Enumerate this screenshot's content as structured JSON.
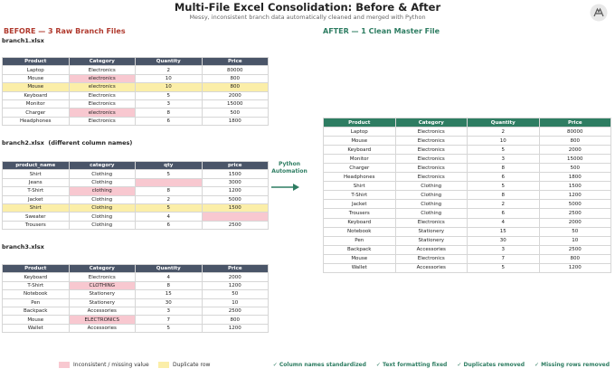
{
  "header": {
    "title": "Multi-File Excel Consolidation: Before & After",
    "subtitle": "Messy, inconsistent branch data automatically cleaned and merged with Python"
  },
  "before": {
    "heading": "BEFORE — 3 Raw Branch Files",
    "files": [
      {
        "label": "branch1.xlsx",
        "columns": [
          "Product",
          "Category",
          "Quantity",
          "Price"
        ],
        "rows": [
          [
            "Laptop",
            "Electronics",
            "2",
            "80000"
          ],
          [
            "Mouse",
            "electronics",
            "10",
            "800"
          ],
          [
            "Mouse",
            "electronics",
            "10",
            "800"
          ],
          [
            "Keyboard",
            "Electronics",
            "5",
            "2000"
          ],
          [
            "Monitor",
            "Electronics",
            "3",
            "15000"
          ],
          [
            "Charger",
            "electronics",
            "8",
            "500"
          ],
          [
            "Headphones",
            "Electronics",
            "6",
            "1800"
          ]
        ],
        "pink_cells": [
          [
            1,
            1
          ],
          [
            5,
            1
          ]
        ],
        "yellow_rows": [
          2
        ]
      },
      {
        "label": "branch2.xlsx  (different column names)",
        "columns": [
          "product_name",
          "category",
          "qty",
          "price"
        ],
        "rows": [
          [
            "Shirt",
            "Clothing",
            "5",
            "1500"
          ],
          [
            "Jeans",
            "Clothing",
            null,
            "3000"
          ],
          [
            "T-Shirt",
            "clothing",
            "8",
            "1200"
          ],
          [
            "Jacket",
            "Clothing",
            "2",
            "5000"
          ],
          [
            "Shirt",
            "Clothing",
            "5",
            "1500"
          ],
          [
            "Sweater",
            "Clothing",
            "4",
            null
          ],
          [
            "Trousers",
            "Clothing",
            "6",
            "2500"
          ]
        ],
        "pink_cells": [
          [
            1,
            2
          ],
          [
            2,
            1
          ],
          [
            5,
            3
          ]
        ],
        "yellow_rows": [
          4
        ]
      },
      {
        "label": "branch3.xlsx",
        "columns": [
          "Product",
          "Category",
          "Quantity",
          "Price"
        ],
        "rows": [
          [
            "Keyboard",
            "Electronics",
            "4",
            "2000"
          ],
          [
            "T-Shirt",
            "CLOTHING",
            "8",
            "1200"
          ],
          [
            "Notebook",
            "Stationery",
            "15",
            "50"
          ],
          [
            "Pen",
            "Stationery",
            "30",
            "10"
          ],
          [
            "Backpack",
            "Accessories",
            "3",
            "2500"
          ],
          [
            "Mouse",
            "ELECTRONICS",
            "7",
            "800"
          ],
          [
            "Wallet",
            "Accessories",
            "5",
            "1200"
          ]
        ],
        "pink_cells": [
          [
            1,
            1
          ],
          [
            5,
            1
          ]
        ],
        "yellow_rows": []
      }
    ]
  },
  "arrow_label": "Python\nAutomation",
  "after": {
    "heading": "AFTER — 1 Clean Master File",
    "columns": [
      "Product",
      "Category",
      "Quantity",
      "Price"
    ],
    "rows": [
      [
        "Laptop",
        "Electronics",
        "2",
        "80000"
      ],
      [
        "Mouse",
        "Electronics",
        "10",
        "800"
      ],
      [
        "Keyboard",
        "Electronics",
        "5",
        "2000"
      ],
      [
        "Monitor",
        "Electronics",
        "3",
        "15000"
      ],
      [
        "Charger",
        "Electronics",
        "8",
        "500"
      ],
      [
        "Headphones",
        "Electronics",
        "6",
        "1800"
      ],
      [
        "Shirt",
        "Clothing",
        "5",
        "1500"
      ],
      [
        "T-Shirt",
        "Clothing",
        "8",
        "1200"
      ],
      [
        "Jacket",
        "Clothing",
        "2",
        "5000"
      ],
      [
        "Trousers",
        "Clothing",
        "6",
        "2500"
      ],
      [
        "Keyboard",
        "Electronics",
        "4",
        "2000"
      ],
      [
        "Notebook",
        "Stationery",
        "15",
        "50"
      ],
      [
        "Pen",
        "Stationery",
        "30",
        "10"
      ],
      [
        "Backpack",
        "Accessories",
        "3",
        "2500"
      ],
      [
        "Mouse",
        "Electronics",
        "7",
        "800"
      ],
      [
        "Wallet",
        "Accessories",
        "5",
        "1200"
      ]
    ]
  },
  "legend": [
    "Inconsistent / missing value",
    "Duplicate row"
  ],
  "checks": [
    "✓ Column names standardized",
    "✓ Text formatting fixed",
    "✓ Duplicates removed",
    "✓ Missing rows removed"
  ]
}
